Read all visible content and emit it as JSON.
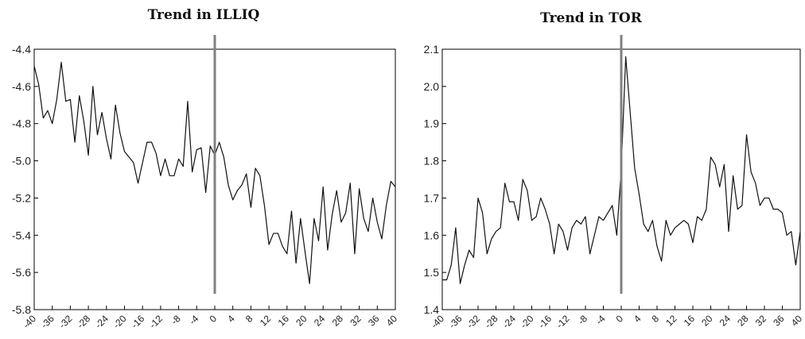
{
  "chart_data": [
    {
      "type": "line",
      "title": "Trend in  ILLIQ",
      "xlabel": "",
      "ylabel": "",
      "xlim": [
        -40,
        40
      ],
      "ylim": [
        -5.8,
        -4.4
      ],
      "yticks": [
        -5.8,
        -5.6,
        -5.4,
        -5.2,
        -5.0,
        -4.8,
        -4.6,
        -4.4
      ],
      "ytick_labels": [
        "-5.8",
        "-5.6",
        "-5.4",
        "-5.2",
        "-5.0",
        "-4.8",
        "-4.6",
        "-4.4"
      ],
      "xticks": [
        -40,
        -36,
        -32,
        -28,
        -24,
        -20,
        -16,
        -12,
        -8,
        -4,
        0,
        4,
        8,
        12,
        16,
        20,
        24,
        28,
        32,
        36,
        40
      ],
      "xtick_labels": [
        "-40",
        "-36",
        "-32",
        "-28",
        "-24",
        "-20",
        "-16",
        "-12",
        "-8",
        "-4",
        "0",
        "4",
        "8",
        "12",
        "16",
        "20",
        "24",
        "28",
        "32",
        "36",
        "40"
      ],
      "grid": false,
      "event_line": {
        "x": 0,
        "color": "#808080"
      },
      "series": [
        {
          "color": "#111111",
          "x": [
            -40,
            -39,
            -38,
            -37,
            -36,
            -35,
            -34,
            -33,
            -32,
            -31,
            -30,
            -29,
            -28,
            -27,
            -26,
            -25,
            -24,
            -23,
            -22,
            -21,
            -20,
            -19,
            -18,
            -17,
            -16,
            -15,
            -14,
            -13,
            -12,
            -11,
            -10,
            -9,
            -8,
            -7,
            -6,
            -5,
            -4,
            -3,
            -2,
            -1,
            0,
            1,
            2,
            3,
            4,
            5,
            6,
            7,
            8,
            9,
            10,
            11,
            12,
            13,
            14,
            15,
            16,
            17,
            18,
            19,
            20,
            21,
            22,
            23,
            24,
            25,
            26,
            27,
            28,
            29,
            30,
            31,
            32,
            33,
            34,
            35,
            36,
            37,
            38,
            39,
            40
          ],
          "values": [
            -4.49,
            -4.59,
            -4.77,
            -4.73,
            -4.8,
            -4.67,
            -4.47,
            -4.68,
            -4.67,
            -4.9,
            -4.65,
            -4.79,
            -4.97,
            -4.6,
            -4.86,
            -4.74,
            -4.88,
            -4.99,
            -4.7,
            -4.85,
            -4.95,
            -4.98,
            -5.01,
            -5.12,
            -5.01,
            -4.9,
            -4.9,
            -4.96,
            -5.08,
            -4.99,
            -5.08,
            -5.08,
            -4.99,
            -5.03,
            -4.68,
            -5.06,
            -4.94,
            -4.93,
            -5.17,
            -4.92,
            -4.97,
            -4.9,
            -4.98,
            -5.13,
            -5.21,
            -5.16,
            -5.13,
            -5.07,
            -5.25,
            -5.04,
            -5.08,
            -5.24,
            -5.45,
            -5.39,
            -5.39,
            -5.46,
            -5.5,
            -5.27,
            -5.55,
            -5.31,
            -5.49,
            -5.66,
            -5.31,
            -5.43,
            -5.14,
            -5.48,
            -5.29,
            -5.16,
            -5.33,
            -5.28,
            -5.12,
            -5.5,
            -5.15,
            -5.31,
            -5.38,
            -5.2,
            -5.33,
            -5.42,
            -5.24,
            -5.11,
            -5.14
          ]
        }
      ]
    },
    {
      "type": "line",
      "title": "Trend in  TOR",
      "xlabel": "",
      "ylabel": "",
      "xlim": [
        -40,
        40
      ],
      "ylim": [
        1.4,
        2.1
      ],
      "yticks": [
        1.4,
        1.5,
        1.6,
        1.7,
        1.8,
        1.9,
        2.0,
        2.1
      ],
      "ytick_labels": [
        "1.4",
        "1.5",
        "1.6",
        "1.7",
        "1.8",
        "1.9",
        "2.0",
        "2.1"
      ],
      "xticks": [
        -40,
        -36,
        -32,
        -28,
        -24,
        -20,
        -16,
        -12,
        -8,
        -4,
        0,
        4,
        8,
        12,
        16,
        20,
        24,
        28,
        32,
        36,
        40
      ],
      "xtick_labels": [
        "-40",
        "-36",
        "-32",
        "-28",
        "-24",
        "-20",
        "-16",
        "-12",
        "-8",
        "-4",
        "0",
        "4",
        "8",
        "12",
        "16",
        "20",
        "24",
        "28",
        "32",
        "36",
        "40"
      ],
      "grid": false,
      "event_line": {
        "x": 0,
        "color": "#808080"
      },
      "series": [
        {
          "color": "#111111",
          "x": [
            -40,
            -39,
            -38,
            -37,
            -36,
            -35,
            -34,
            -33,
            -32,
            -31,
            -30,
            -29,
            -28,
            -27,
            -26,
            -25,
            -24,
            -23,
            -22,
            -21,
            -20,
            -19,
            -18,
            -17,
            -16,
            -15,
            -14,
            -13,
            -12,
            -11,
            -10,
            -9,
            -8,
            -7,
            -6,
            -5,
            -4,
            -3,
            -2,
            -1,
            0,
            1,
            2,
            3,
            4,
            5,
            6,
            7,
            8,
            9,
            10,
            11,
            12,
            13,
            14,
            15,
            16,
            17,
            18,
            19,
            20,
            21,
            22,
            23,
            24,
            25,
            26,
            27,
            28,
            29,
            30,
            31,
            32,
            33,
            34,
            35,
            36,
            37,
            38,
            39,
            40
          ],
          "values": [
            1.48,
            1.48,
            1.52,
            1.62,
            1.47,
            1.52,
            1.56,
            1.54,
            1.7,
            1.66,
            1.55,
            1.59,
            1.61,
            1.62,
            1.74,
            1.69,
            1.69,
            1.64,
            1.75,
            1.72,
            1.64,
            1.65,
            1.7,
            1.67,
            1.63,
            1.55,
            1.63,
            1.61,
            1.56,
            1.62,
            1.64,
            1.63,
            1.65,
            1.55,
            1.6,
            1.65,
            1.64,
            1.66,
            1.68,
            1.6,
            1.78,
            2.08,
            1.93,
            1.78,
            1.71,
            1.63,
            1.61,
            1.64,
            1.57,
            1.53,
            1.64,
            1.6,
            1.62,
            1.63,
            1.64,
            1.63,
            1.58,
            1.65,
            1.64,
            1.67,
            1.81,
            1.79,
            1.73,
            1.79,
            1.61,
            1.76,
            1.67,
            1.68,
            1.87,
            1.77,
            1.74,
            1.68,
            1.7,
            1.7,
            1.67,
            1.67,
            1.66,
            1.6,
            1.61,
            1.52,
            1.61
          ]
        }
      ]
    }
  ]
}
